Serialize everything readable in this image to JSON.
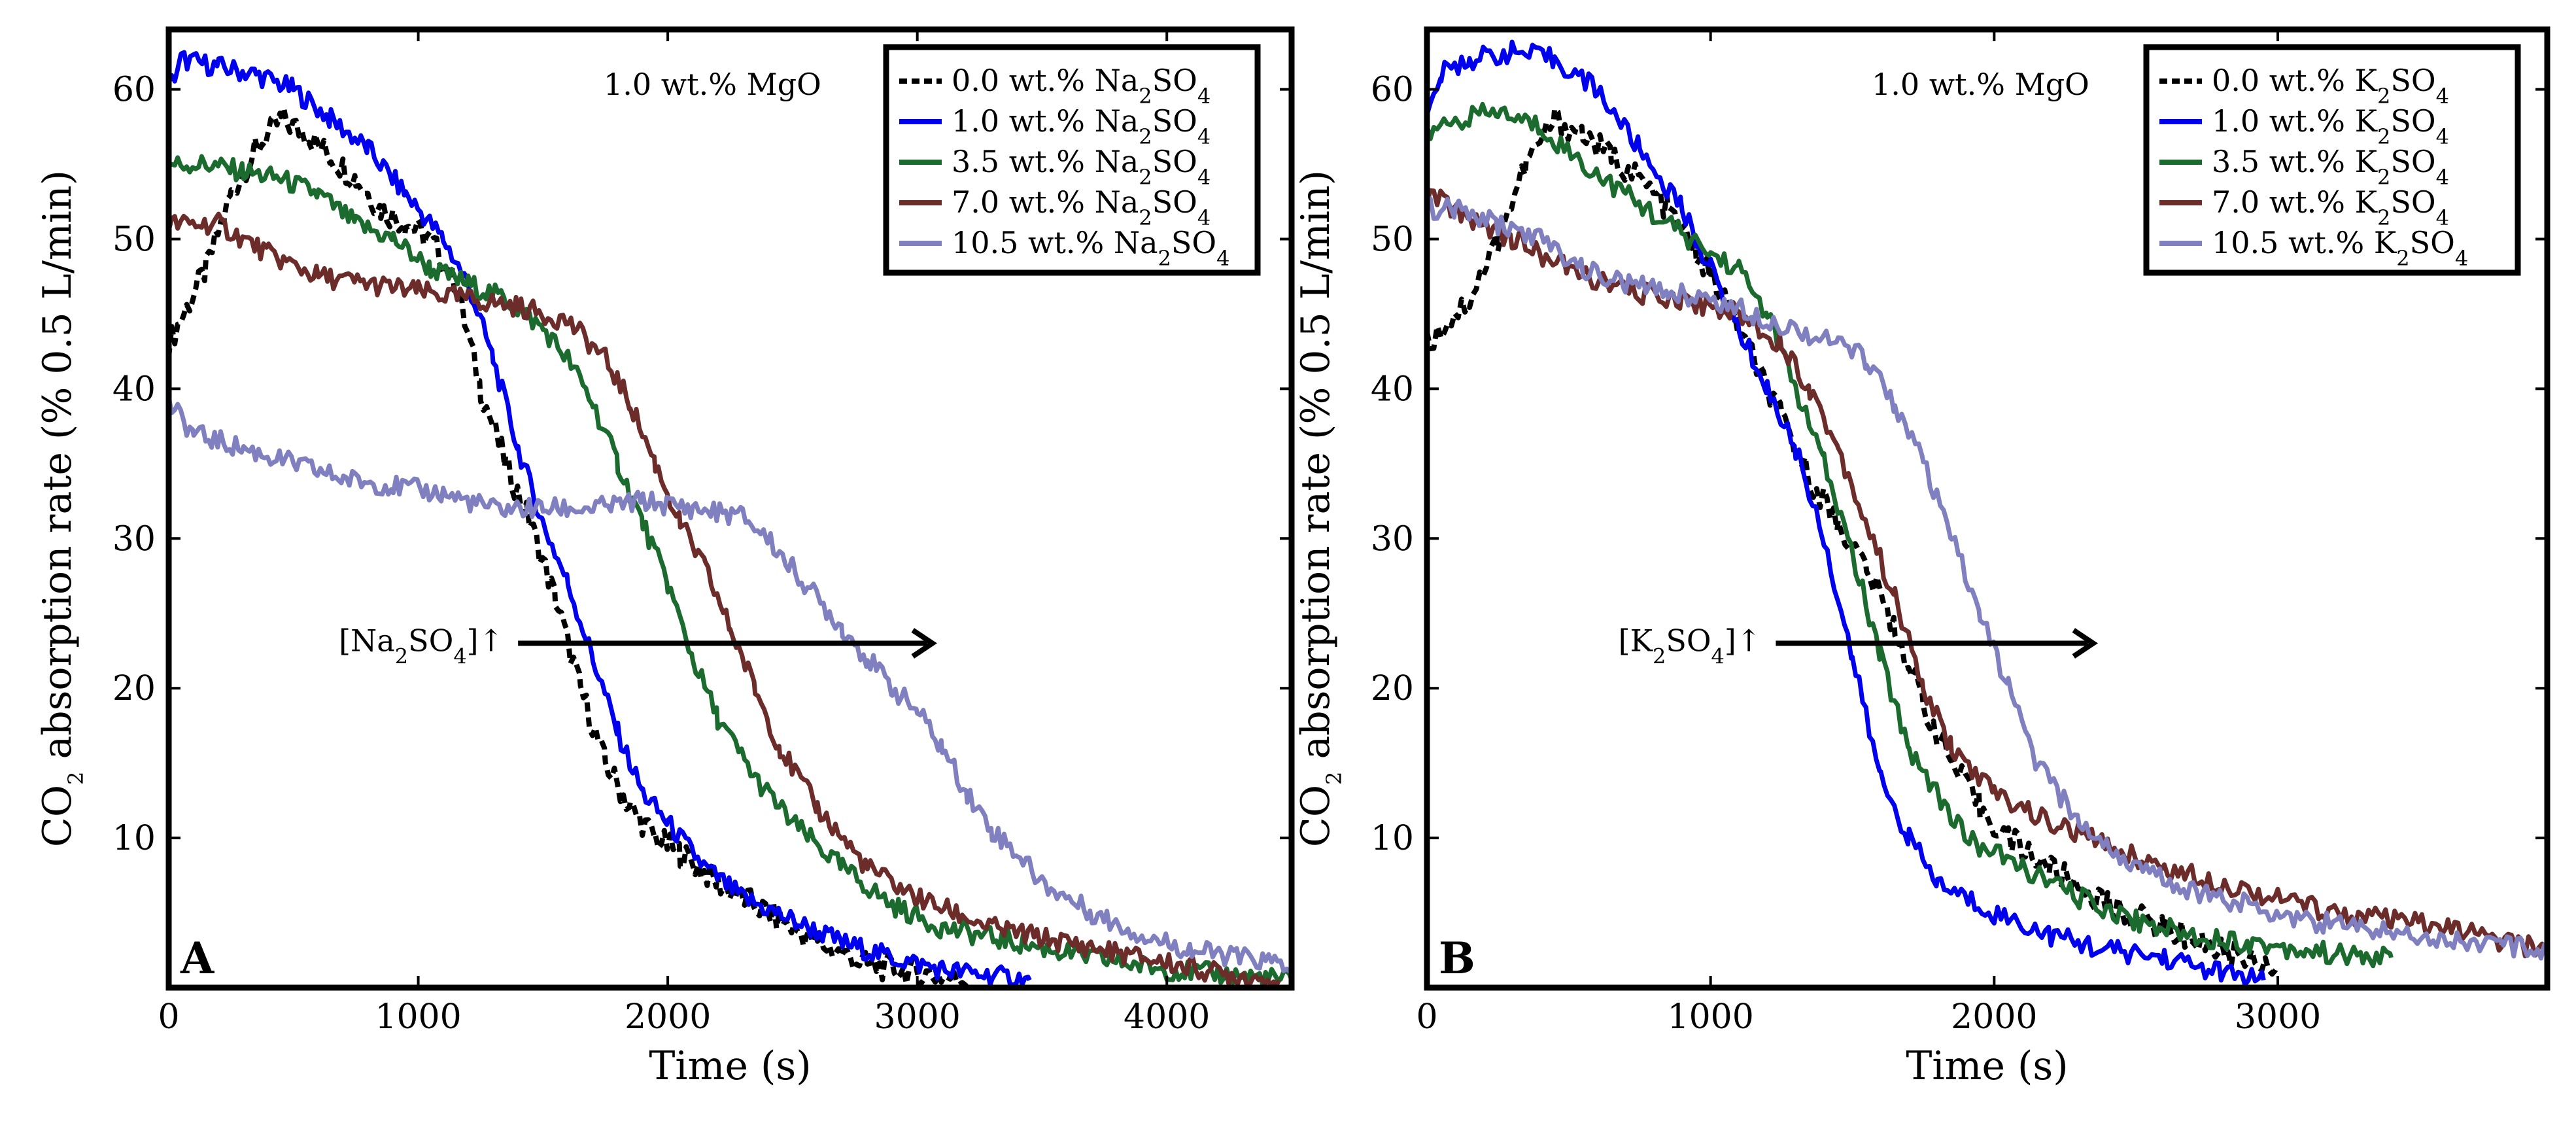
{
  "figure": "CO2 absorption rate vs time for Na2SO4 and K2SO4 additions",
  "colors": {
    "c0": "#000000",
    "c1": "#0000ee",
    "c35": "#1c6b2e",
    "c7": "#6b2c2a",
    "c105": "#8080c0"
  },
  "chart_data": [
    {
      "type": "line",
      "panel": "A",
      "xlabel": "Time (s)",
      "ylabel_pre": "CO",
      "ylabel_sub": "2",
      "ylabel_post": " absorption rate (% 0.5 L/min)",
      "xlim": [
        0,
        4500
      ],
      "ylim": [
        0,
        64
      ],
      "xticks": [
        0,
        1000,
        2000,
        3000,
        4000
      ],
      "xtick_labels": [
        "0",
        "1000",
        "2000",
        "3000",
        "4000"
      ],
      "yticks": [
        10,
        20,
        30,
        40,
        50,
        60
      ],
      "ytick_labels": [
        "10",
        "20",
        "30",
        "40",
        "50",
        "60"
      ],
      "annotation_top": "1.0 wt.% MgO",
      "arrow_label_pre": "[Na",
      "arrow_label_sub1": "2",
      "arrow_label_mid": "SO",
      "arrow_label_sub2": "4",
      "arrow_label_post": "]↑",
      "arrow": {
        "from": [
          1400,
          23
        ],
        "to": [
          3050,
          23
        ]
      },
      "series": [
        {
          "name": "0.0 wt.% Na2SO4",
          "label_pre": "0.0 wt.% Na",
          "label_sub1": "2",
          "label_mid": "SO",
          "label_sub2": "4",
          "color": "#000000",
          "dashed": true,
          "x": [
            0,
            60,
            150,
            250,
            350,
            450,
            550,
            650,
            750,
            850,
            950,
            1050,
            1150,
            1250,
            1350,
            1450,
            1550,
            1650,
            1750,
            1850,
            1950,
            2050,
            2200,
            2400,
            2600,
            2800,
            3000,
            3200
          ],
          "y": [
            43,
            45,
            48,
            53,
            56,
            58,
            57,
            55.5,
            54,
            52,
            51,
            50,
            47,
            40,
            35,
            31,
            26,
            20,
            15,
            12,
            10,
            9,
            7,
            5,
            3,
            1.5,
            1,
            0.5
          ]
        },
        {
          "name": "1.0 wt.% Na2SO4",
          "label_pre": "1.0 wt.% Na",
          "label_sub1": "2",
          "label_mid": "SO",
          "label_sub2": "4",
          "color": "#0000ee",
          "dashed": false,
          "x": [
            0,
            50,
            200,
            350,
            500,
            650,
            800,
            950,
            1100,
            1200,
            1300,
            1400,
            1500,
            1600,
            1700,
            1800,
            1900,
            2000,
            2150,
            2300,
            2500,
            2700,
            2900,
            3100,
            3300,
            3450
          ],
          "y": [
            60,
            62,
            61.5,
            61,
            60,
            58,
            56,
            53,
            50,
            47,
            42,
            36,
            31,
            27,
            22,
            17,
            13,
            11,
            8,
            6,
            4.5,
            3,
            2,
            1.2,
            0.8,
            0.5
          ]
        },
        {
          "name": "3.5 wt.% Na2SO4",
          "label_pre": "3.5 wt.% Na",
          "label_sub1": "2",
          "label_mid": "SO",
          "label_sub2": "4",
          "color": "#1c6b2e",
          "dashed": false,
          "x": [
            0,
            150,
            300,
            450,
            600,
            750,
            900,
            1050,
            1200,
            1350,
            1500,
            1600,
            1700,
            1800,
            1900,
            2000,
            2100,
            2200,
            2350,
            2500,
            2700,
            2900,
            3100,
            3400,
            3700,
            4000,
            4300,
            4500
          ],
          "y": [
            55,
            55,
            54.5,
            54,
            53,
            51,
            50,
            48,
            47,
            46,
            44,
            42,
            39,
            35,
            31,
            27,
            22,
            18,
            14,
            11,
            8,
            5.5,
            4,
            3,
            2,
            1.2,
            0.8,
            0.5
          ]
        },
        {
          "name": "7.0 wt.% Na2SO4",
          "label_pre": "7.0 wt.% Na",
          "label_sub1": "2",
          "label_mid": "SO",
          "label_sub2": "4",
          "color": "#6b2c2a",
          "dashed": false,
          "x": [
            0,
            200,
            400,
            600,
            800,
            1000,
            1200,
            1400,
            1600,
            1750,
            1850,
            1950,
            2050,
            2150,
            2250,
            2350,
            2450,
            2600,
            2800,
            3000,
            3300,
            3600,
            3900,
            4200,
            4450
          ],
          "y": [
            51,
            51,
            49,
            47.5,
            47,
            46.5,
            46,
            45.5,
            44.5,
            42,
            39,
            35,
            31,
            28,
            24,
            20,
            16,
            12,
            8,
            6,
            4,
            3,
            2,
            1,
            0.5
          ]
        },
        {
          "name": "10.5 wt.% Na2SO4",
          "label_pre": "10.5 wt.% Na",
          "label_sub1": "2",
          "label_mid": "SO",
          "label_sub2": "4",
          "color": "#8080c0",
          "dashed": false,
          "x": [
            0,
            100,
            300,
            500,
            700,
            900,
            1100,
            1300,
            1500,
            1700,
            1900,
            2100,
            2300,
            2400,
            2500,
            2600,
            2700,
            2800,
            2900,
            3000,
            3100,
            3200,
            3300,
            3400,
            3500,
            3700,
            3900,
            4100,
            4300,
            4500
          ],
          "y": [
            39,
            37,
            36,
            35,
            34,
            33.5,
            33,
            32,
            32,
            32,
            32.5,
            32,
            31.5,
            30,
            28,
            26,
            24,
            22,
            20,
            18.5,
            16,
            13,
            10.5,
            9,
            7,
            5,
            3.5,
            2.5,
            2,
            1.5
          ]
        }
      ]
    },
    {
      "type": "line",
      "panel": "B",
      "xlabel": "Time (s)",
      "ylabel_pre": "CO",
      "ylabel_sub": "2",
      "ylabel_post": " absorption rate (% 0.5 L/min)",
      "xlim": [
        0,
        3950
      ],
      "ylim": [
        0,
        64
      ],
      "xticks": [
        0,
        1000,
        2000,
        3000
      ],
      "xtick_labels": [
        "0",
        "1000",
        "2000",
        "3000"
      ],
      "yticks": [
        10,
        20,
        30,
        40,
        50,
        60
      ],
      "ytick_labels": [
        "10",
        "20",
        "30",
        "40",
        "50",
        "60"
      ],
      "annotation_top": "1.0 wt.% MgO",
      "arrow_label_pre": "[K",
      "arrow_label_sub1": "2",
      "arrow_label_mid": "SO",
      "arrow_label_sub2": "4",
      "arrow_label_post": "]↑",
      "arrow": {
        "from": [
          1230,
          23
        ],
        "to": [
          2340,
          23
        ]
      },
      "series": [
        {
          "name": "0.0 wt.% K2SO4",
          "label_pre": "0.0 wt.% K",
          "label_sub1": "2",
          "label_mid": "SO",
          "label_sub2": "4",
          "color": "#000000",
          "dashed": true,
          "x": [
            0,
            50,
            150,
            250,
            350,
            450,
            550,
            650,
            750,
            850,
            950,
            1050,
            1150,
            1250,
            1350,
            1450,
            1550,
            1650,
            1750,
            1850,
            1950,
            2050,
            2200,
            2400,
            2600,
            2800,
            3000
          ],
          "y": [
            43,
            44,
            46,
            50,
            55,
            58,
            57,
            55.5,
            54,
            52,
            49,
            46,
            42,
            38,
            34,
            31,
            28,
            24,
            19,
            15,
            12,
            10,
            8,
            5.5,
            4,
            2.5,
            1.5
          ]
        },
        {
          "name": "1.0 wt.% K2SO4",
          "label_pre": "1.0 wt.% K",
          "label_sub1": "2",
          "label_mid": "SO",
          "label_sub2": "4",
          "color": "#0000ee",
          "dashed": false,
          "x": [
            0,
            50,
            150,
            300,
            450,
            600,
            750,
            900,
            1000,
            1100,
            1200,
            1300,
            1400,
            1500,
            1600,
            1700,
            1800,
            2000,
            2200,
            2400,
            2600,
            2800,
            2950
          ],
          "y": [
            58,
            61,
            62,
            62.5,
            62,
            60,
            56,
            52,
            48,
            44,
            40,
            36,
            30,
            22,
            14,
            10,
            7,
            5,
            3.5,
            2.5,
            2,
            1,
            0.5
          ]
        },
        {
          "name": "3.5 wt.% K2SO4",
          "label_pre": "3.5 wt.% K",
          "label_sub1": "2",
          "label_mid": "SO",
          "label_sub2": "4",
          "color": "#1c6b2e",
          "dashed": false,
          "x": [
            0,
            100,
            250,
            400,
            550,
            700,
            850,
            1000,
            1100,
            1200,
            1300,
            1400,
            1500,
            1600,
            1700,
            1800,
            1900,
            2100,
            2300,
            2500,
            2700,
            2900,
            3100,
            3300,
            3400
          ],
          "y": [
            57,
            58,
            58.5,
            57.5,
            55,
            53,
            51,
            49,
            48,
            45,
            40,
            35,
            29,
            22,
            16,
            13,
            10,
            8,
            6,
            4.5,
            3.5,
            3,
            2.5,
            2,
            2
          ]
        },
        {
          "name": "7.0 wt.% K2SO4",
          "label_pre": "7.0 wt.% K",
          "label_sub1": "2",
          "label_mid": "SO",
          "label_sub2": "4",
          "color": "#6b2c2a",
          "dashed": false,
          "x": [
            0,
            150,
            300,
            500,
            700,
            900,
            1100,
            1250,
            1350,
            1450,
            1550,
            1650,
            1750,
            1850,
            2000,
            2200,
            2400,
            2600,
            2800,
            3000,
            3200,
            3400,
            3600,
            3800,
            3950
          ],
          "y": [
            53,
            51.5,
            50,
            48,
            46.5,
            46,
            45,
            43,
            40,
            36,
            31,
            26,
            20,
            16,
            13,
            11,
            9.5,
            8,
            7,
            6,
            5,
            4.5,
            4,
            3,
            2.5
          ]
        },
        {
          "name": "10.5 wt.% K2SO4",
          "label_pre": "10.5 wt.% K",
          "label_sub1": "2",
          "label_mid": "SO",
          "label_sub2": "4",
          "color": "#8080c0",
          "dashed": false,
          "x": [
            0,
            100,
            250,
            400,
            550,
            700,
            850,
            1000,
            1150,
            1300,
            1450,
            1550,
            1650,
            1750,
            1850,
            1950,
            2050,
            2150,
            2300,
            2500,
            2700,
            2900,
            3100,
            3300,
            3500,
            3700,
            3950
          ],
          "y": [
            52,
            52,
            51,
            50,
            48,
            47,
            46.5,
            46,
            45,
            44,
            43,
            42,
            39,
            35,
            30,
            25,
            20,
            15,
            11,
            8,
            6.5,
            5.5,
            4.5,
            4,
            3.5,
            3,
            2.5
          ]
        }
      ]
    }
  ]
}
